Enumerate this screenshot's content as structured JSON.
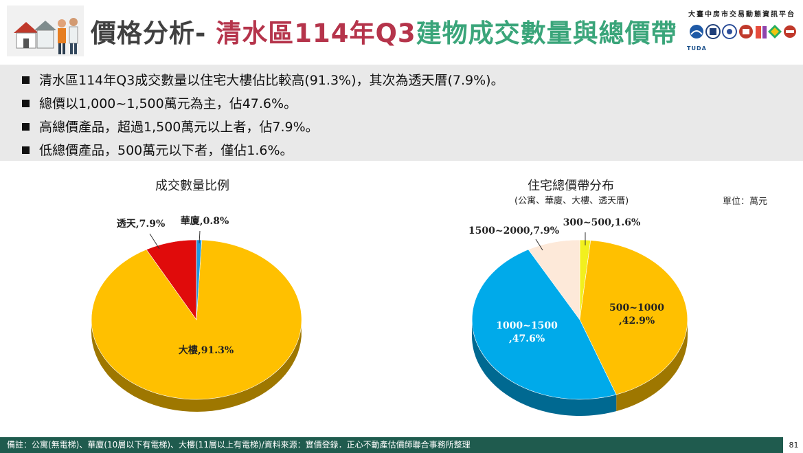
{
  "header": {
    "title_part1": "價格分析-",
    "title_part2": "清水區114年Q3",
    "title_part3": "建物成交數量與總價帶",
    "platform": "大臺中房市交易動態資訊平台",
    "logo_label": "TUDA"
  },
  "summary": {
    "items": [
      "清水區114年Q3成交數量以住宅大樓佔比較高(91.3%)，其次為透天厝(7.9%)。",
      "總價以1,000~1,500萬元為主，佔47.6%。",
      "高總價產品，超過1,500萬元以上者，佔7.9%。",
      "低總價產品，500萬元以下者，僅佔1.6%。"
    ]
  },
  "chart_data": [
    {
      "type": "pie",
      "title": "成交數量比例",
      "categories": [
        "大樓",
        "透天",
        "華廈"
      ],
      "values": [
        91.3,
        7.9,
        0.8
      ],
      "labels": [
        "大樓,91.3%",
        "透天,7.9%",
        "華廈,0.8%"
      ],
      "colors": [
        "#ffc000",
        "#e00b0b",
        "#1e9ae0"
      ]
    },
    {
      "type": "pie",
      "title": "住宅總價帶分布",
      "subtitle": "(公寓、華廈、大樓、透天厝)",
      "unit": "單位：萬元",
      "categories": [
        "300~500",
        "500~1000",
        "1000~1500",
        "1500~2000"
      ],
      "values": [
        1.6,
        42.9,
        47.6,
        7.9
      ],
      "labels": [
        "300~500,1.6%",
        "500~1000,42.9%",
        "1000~1500,47.6%",
        "1500~2000,7.9%"
      ],
      "colors": [
        "#f2f01e",
        "#ffc000",
        "#00aaea",
        "#fde9d9"
      ]
    }
  ],
  "footer": {
    "note": "備註：公寓(無電梯)、華廈(10層以下有電梯)、大樓(11層以上有電梯)/資料來源：實價登錄．正心不動產估價師聯合事務所整理",
    "page_number": "81"
  }
}
